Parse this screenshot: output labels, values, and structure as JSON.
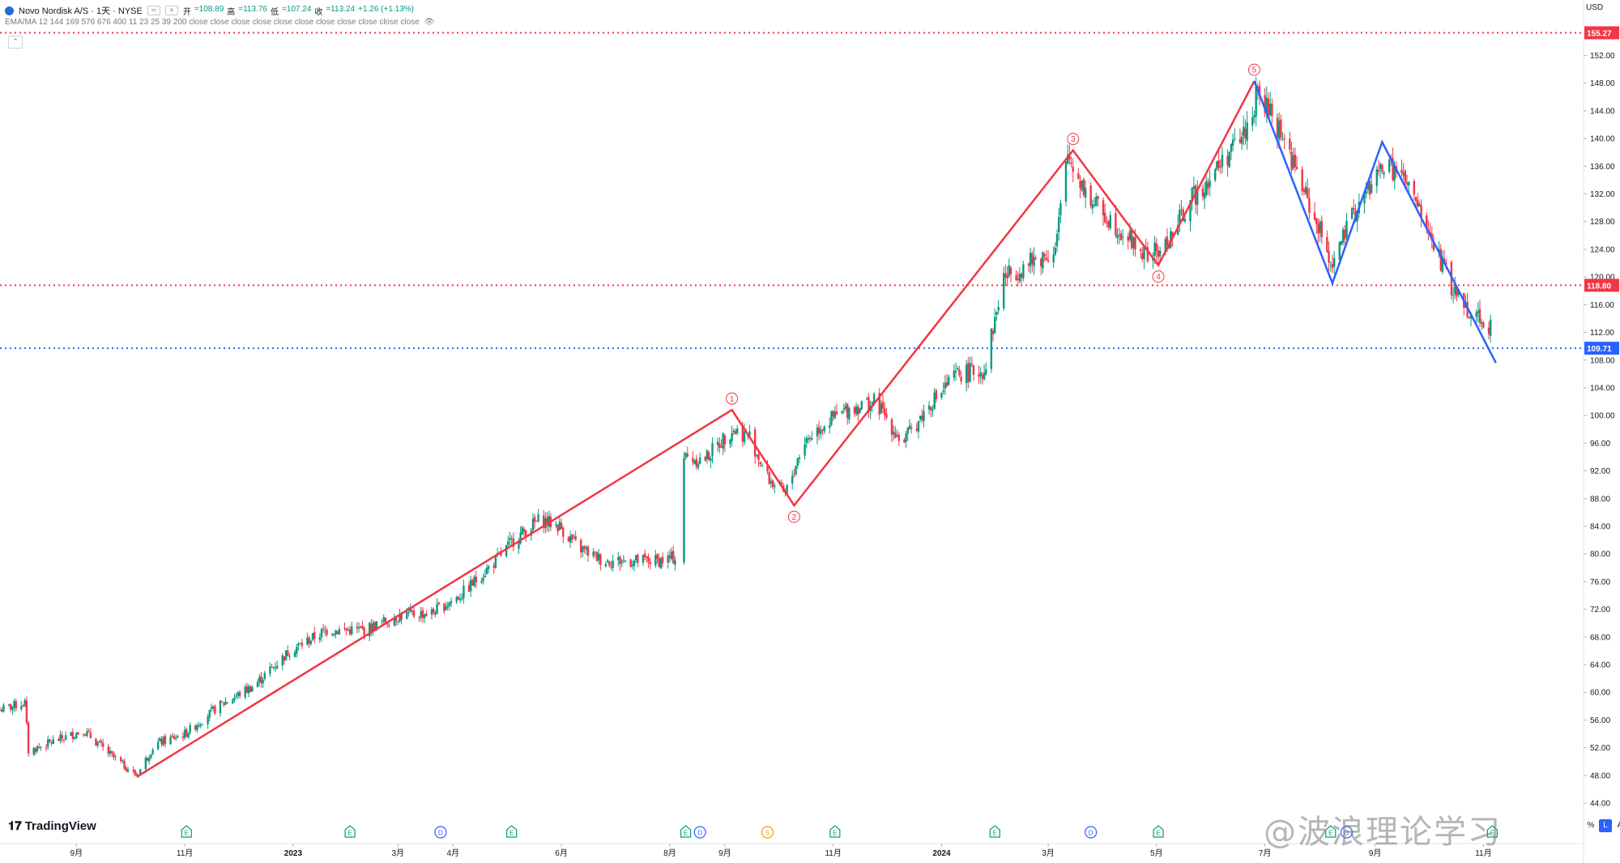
{
  "header": {
    "symbol": "Novo Nordisk A/S · 1天 · NYSE",
    "open_label": "开",
    "open": "=108.89",
    "high_label": "高",
    "high": "=113.76",
    "low_label": "低",
    "low": "=107.24",
    "close_label": "收",
    "close": "=113.24",
    "change": "+1.26 (+1.13%)",
    "indicator": "EMA/MA 12 144 169 576 676 400 11 23 25 39 200 close close close close close close close close close close close"
  },
  "brand": {
    "logo": "TradingView"
  },
  "watermark": "@波浪理论学习",
  "axis": {
    "currency": "USD"
  },
  "corner_buttons": [
    "%",
    "L",
    "A"
  ],
  "colors": {
    "up": "#089981",
    "down": "#f23645",
    "red_wave": "#f23645",
    "blue_wave": "#2962ff",
    "grid": "#f0f3fa",
    "axis_text": "#131722"
  },
  "chart_data": {
    "type": "candlestick",
    "ylim": [
      40.5,
      156.5
    ],
    "y_ticks": [
      44,
      48,
      52,
      56,
      60,
      64,
      68,
      72,
      76,
      80,
      84,
      88,
      92,
      96,
      100,
      104,
      108,
      112,
      116,
      120,
      124,
      128,
      132,
      136,
      140,
      144,
      148,
      152
    ],
    "x_labels": [
      {
        "label": "9月",
        "date": "2022-09-01"
      },
      {
        "label": "11月",
        "date": "2022-11-01"
      },
      {
        "label": "2023",
        "date": "2023-01-01"
      },
      {
        "label": "3月",
        "date": "2023-03-01"
      },
      {
        "label": "4月",
        "date": "2023-04-01"
      },
      {
        "label": "6月",
        "date": "2023-06-01"
      },
      {
        "label": "8月",
        "date": "2023-08-01"
      },
      {
        "label": "9月",
        "date": "2023-09-01"
      },
      {
        "label": "11月",
        "date": "2023-11-01"
      },
      {
        "label": "2024",
        "date": "2024-01-01"
      },
      {
        "label": "3月",
        "date": "2024-03-01"
      },
      {
        "label": "5月",
        "date": "2024-05-01"
      },
      {
        "label": "7月",
        "date": "2024-07-01"
      },
      {
        "label": "9月",
        "date": "2024-09-01"
      },
      {
        "label": "11月",
        "date": "2024-11-01"
      }
    ],
    "price_path": [
      [
        "2022-07-20",
        57.5
      ],
      [
        "2022-08-03",
        58.5
      ],
      [
        "2022-08-05",
        51.5
      ],
      [
        "2022-08-20",
        53
      ],
      [
        "2022-09-05",
        54.5
      ],
      [
        "2022-09-20",
        51
      ],
      [
        "2022-10-05",
        48
      ],
      [
        "2022-10-15",
        52.5
      ],
      [
        "2022-11-01",
        54
      ],
      [
        "2022-11-20",
        58
      ],
      [
        "2022-12-10",
        61
      ],
      [
        "2022-12-30",
        66
      ],
      [
        "2023-01-20",
        69
      ],
      [
        "2023-02-10",
        69
      ],
      [
        "2023-03-01",
        71
      ],
      [
        "2023-03-20",
        71.5
      ],
      [
        "2023-04-05",
        74
      ],
      [
        "2023-04-25",
        79
      ],
      [
        "2023-05-05",
        82
      ],
      [
        "2023-05-20",
        85
      ],
      [
        "2023-05-31",
        84
      ],
      [
        "2023-06-10",
        81
      ],
      [
        "2023-06-25",
        79
      ],
      [
        "2023-07-10",
        79
      ],
      [
        "2023-07-25",
        79
      ],
      [
        "2023-08-05",
        79.5
      ],
      [
        "2023-08-09",
        94
      ],
      [
        "2023-08-20",
        93.5
      ],
      [
        "2023-09-05",
        98
      ],
      [
        "2023-09-15",
        97
      ],
      [
        "2023-09-25",
        91
      ],
      [
        "2023-10-05",
        88.5
      ],
      [
        "2023-10-15",
        96
      ],
      [
        "2023-10-25",
        98.5
      ],
      [
        "2023-11-10",
        101
      ],
      [
        "2023-11-25",
        102
      ],
      [
        "2023-12-10",
        96
      ],
      [
        "2023-12-25",
        101.5
      ],
      [
        "2024-01-10",
        106
      ],
      [
        "2024-01-25",
        106.5
      ],
      [
        "2024-02-05",
        120
      ],
      [
        "2024-02-20",
        122
      ],
      [
        "2024-03-05",
        124
      ],
      [
        "2024-03-12",
        137.5
      ],
      [
        "2024-03-25",
        131
      ],
      [
        "2024-04-10",
        127
      ],
      [
        "2024-04-25",
        123
      ],
      [
        "2024-05-05",
        124
      ],
      [
        "2024-05-20",
        131
      ],
      [
        "2024-06-05",
        136
      ],
      [
        "2024-06-20",
        141
      ],
      [
        "2024-06-27",
        146.5
      ],
      [
        "2024-07-10",
        141
      ],
      [
        "2024-07-25",
        131
      ],
      [
        "2024-08-08",
        122
      ],
      [
        "2024-08-20",
        129
      ],
      [
        "2024-09-05",
        136
      ],
      [
        "2024-09-15",
        135
      ],
      [
        "2024-09-25",
        130
      ],
      [
        "2024-10-05",
        124
      ],
      [
        "2024-10-15",
        118
      ],
      [
        "2024-10-25",
        115
      ],
      [
        "2024-11-05",
        113
      ]
    ],
    "wave_red": [
      {
        "date": "2022-10-05",
        "value": 47.8
      },
      {
        "date": "2023-09-05",
        "value": 100.8,
        "label": "1"
      },
      {
        "date": "2023-10-10",
        "value": 87.0,
        "label": "2"
      },
      {
        "date": "2024-03-15",
        "value": 138.3,
        "label": "3"
      },
      {
        "date": "2024-05-02",
        "value": 121.7,
        "label": "4"
      },
      {
        "date": "2024-06-25",
        "value": 148.3,
        "label": "5"
      }
    ],
    "wave_blue": [
      {
        "date": "2024-06-25",
        "value": 148.3
      },
      {
        "date": "2024-08-08",
        "value": 119.1
      },
      {
        "date": "2024-09-05",
        "value": 139.5
      },
      {
        "date": "2024-11-08",
        "value": 107.6
      }
    ],
    "hlines": [
      {
        "value": 155.27,
        "label": "155.27",
        "color": "#f23645"
      },
      {
        "value": 118.8,
        "label": "118.80",
        "color": "#f23645"
      },
      {
        "value": 109.71,
        "label": "109.71",
        "color": "#2962ff"
      }
    ],
    "events": [
      {
        "date": "2022-11-02",
        "kind": "E"
      },
      {
        "date": "2023-02-02",
        "kind": "E"
      },
      {
        "date": "2023-03-25",
        "kind": "D"
      },
      {
        "date": "2023-05-04",
        "kind": "E"
      },
      {
        "date": "2023-08-10",
        "kind": "E"
      },
      {
        "date": "2023-08-18",
        "kind": "D"
      },
      {
        "date": "2023-09-25",
        "kind": "S"
      },
      {
        "date": "2023-11-02",
        "kind": "E"
      },
      {
        "date": "2024-01-31",
        "kind": "E"
      },
      {
        "date": "2024-03-25",
        "kind": "D"
      },
      {
        "date": "2024-05-02",
        "kind": "E"
      },
      {
        "date": "2024-08-07",
        "kind": "E"
      },
      {
        "date": "2024-08-16",
        "kind": "D"
      },
      {
        "date": "2024-11-06",
        "kind": "E"
      }
    ],
    "gap": {
      "from": "2023-08-05",
      "to": "2023-08-09"
    }
  }
}
